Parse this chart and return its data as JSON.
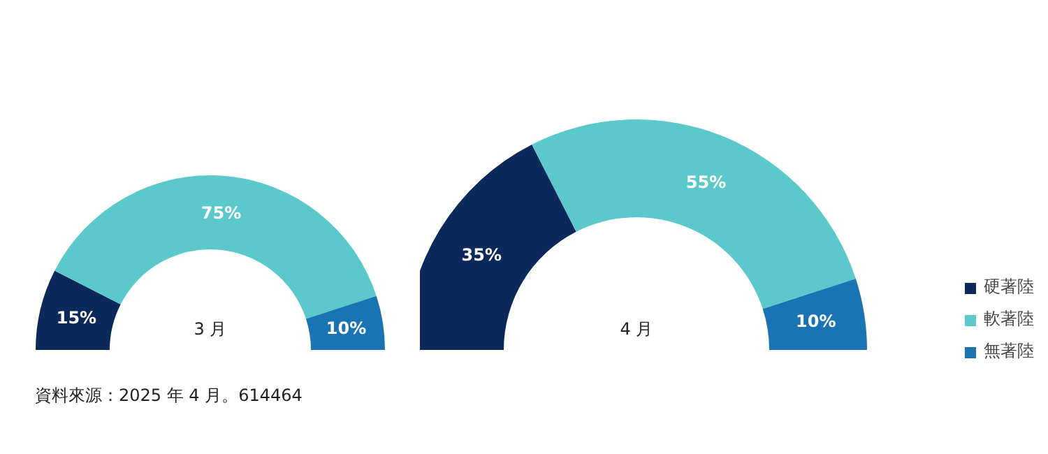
{
  "chart_data": [
    {
      "type": "donut",
      "title": "3 月",
      "categories": [
        null,
        null,
        null
      ],
      "values": [
        15,
        75,
        10
      ],
      "colors": [
        "#0b2a5b",
        "#5bc8cc",
        "#1a74b4"
      ],
      "value_labels": [
        "15%",
        "75%",
        "10%"
      ],
      "legend": false
    },
    {
      "type": "donut",
      "title": "4 月",
      "categories": [
        "硬著陸",
        "軟著陸",
        "無著陸"
      ],
      "values": [
        35,
        55,
        10
      ],
      "colors": [
        "#0b2a5b",
        "#5bc8cc",
        "#1a74b4"
      ],
      "value_labels": [
        "35%",
        "55%",
        "10%"
      ],
      "legend": "right",
      "annotations": [
        "資料來源：2025 年 4 月。614464"
      ]
    }
  ]
}
